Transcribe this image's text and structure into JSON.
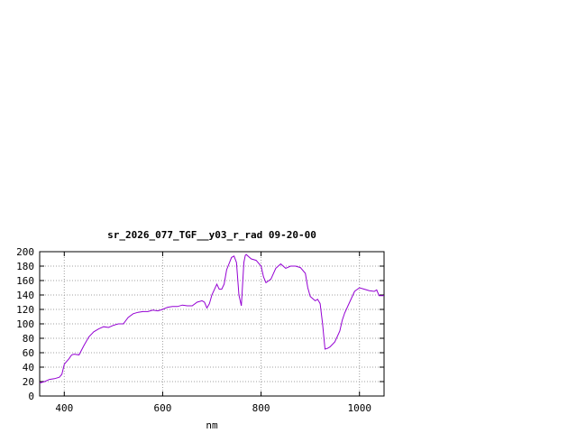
{
  "chart_data": {
    "type": "line",
    "title": "sr_2026_077_TGF__y03_r_rad 09-20-00",
    "xlabel": "nm",
    "ylabel": "",
    "xlim": [
      350,
      1050
    ],
    "ylim": [
      0,
      200
    ],
    "x_ticks": [
      400,
      600,
      800,
      1000
    ],
    "y_ticks": [
      0,
      20,
      40,
      60,
      80,
      100,
      120,
      140,
      160,
      180,
      200
    ],
    "grid": true,
    "line_color": "#9400d3",
    "series": [
      {
        "x": [
          350,
          360,
          370,
          380,
          390,
          395,
          400,
          405,
          410,
          415,
          420,
          430,
          440,
          450,
          460,
          470,
          480,
          490,
          500,
          510,
          520,
          530,
          540,
          550,
          560,
          570,
          580,
          590,
          600,
          610,
          620,
          630,
          640,
          650,
          660,
          670,
          680,
          685,
          690,
          695,
          700,
          710,
          715,
          720,
          725,
          730,
          740,
          745,
          750,
          755,
          760,
          765,
          768,
          770,
          775,
          780,
          790,
          800,
          805,
          810,
          820,
          830,
          840,
          845,
          850,
          860,
          870,
          880,
          890,
          895,
          900,
          910,
          915,
          920,
          925,
          930,
          935,
          940,
          950,
          960,
          965,
          970,
          980,
          990,
          1000,
          1010,
          1020,
          1030,
          1035,
          1040,
          1050
        ],
        "y": [
          18,
          20,
          23,
          24,
          26,
          30,
          44,
          48,
          52,
          57,
          58,
          57,
          70,
          82,
          89,
          93,
          96,
          95,
          98,
          100,
          100,
          109,
          114,
          116,
          117,
          117,
          119,
          118,
          120,
          123,
          124,
          124,
          126,
          125,
          125,
          130,
          132,
          130,
          122,
          128,
          140,
          155,
          148,
          148,
          155,
          175,
          192,
          194,
          185,
          140,
          125,
          185,
          195,
          196,
          193,
          190,
          188,
          180,
          165,
          157,
          162,
          177,
          183,
          180,
          177,
          180,
          180,
          178,
          170,
          150,
          138,
          132,
          134,
          128,
          100,
          65,
          66,
          68,
          75,
          90,
          105,
          115,
          130,
          145,
          150,
          148,
          146,
          145,
          147,
          139,
          139
        ]
      }
    ]
  }
}
